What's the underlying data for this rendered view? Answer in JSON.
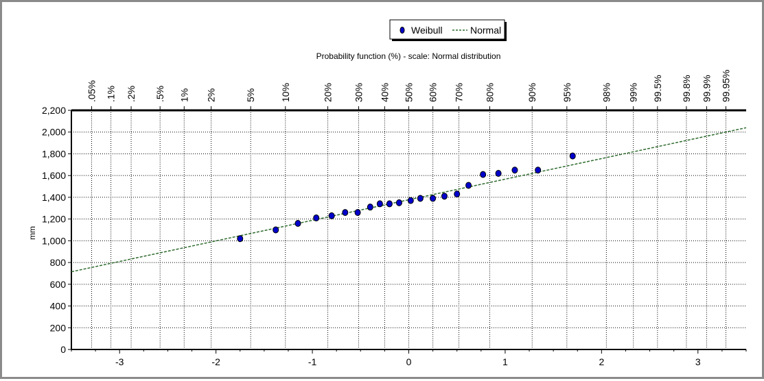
{
  "chart_data": {
    "type": "scatter",
    "title": "Probability function (%) - scale: Normal distribution",
    "ylabel": "mm",
    "xlim": [
      -3.5,
      3.5
    ],
    "ylim": [
      0,
      2200
    ],
    "x_ticks": [
      -3,
      -2,
      -1,
      0,
      1,
      2,
      3
    ],
    "y_ticks": [
      0,
      200,
      400,
      600,
      800,
      1000,
      1200,
      1400,
      1600,
      1800,
      2000,
      2200
    ],
    "y_tick_labels": [
      "0",
      "200",
      "400",
      "600",
      "800",
      "1,000",
      "1,200",
      "1,400",
      "1,600",
      "1,800",
      "2,000",
      "2,200"
    ],
    "top_axis": {
      "labels": [
        ".05%",
        ".1%",
        ".2%",
        ".5%",
        "1%",
        "2%",
        "5%",
        "10%",
        "20%",
        "30%",
        "40%",
        "50%",
        "60%",
        "70%",
        "80%",
        "90%",
        "95%",
        "98%",
        "99%",
        "99.5%",
        "99.8%",
        "99.9%",
        "99.95%"
      ],
      "z": [
        -3.29,
        -3.09,
        -2.88,
        -2.58,
        -2.33,
        -2.05,
        -1.64,
        -1.28,
        -0.84,
        -0.52,
        -0.25,
        0,
        0.25,
        0.52,
        0.84,
        1.28,
        1.64,
        2.05,
        2.33,
        2.58,
        2.88,
        3.09,
        3.29
      ]
    },
    "grid": true,
    "legend_position": "top-center",
    "series": [
      {
        "name": "Weibull",
        "kind": "points",
        "color": "#0000cc",
        "x": [
          -1.75,
          -1.38,
          -1.15,
          -0.96,
          -0.8,
          -0.66,
          -0.53,
          -0.4,
          -0.3,
          -0.2,
          -0.1,
          0.02,
          0.12,
          0.25,
          0.37,
          0.5,
          0.62,
          0.77,
          0.93,
          1.1,
          1.34,
          1.7
        ],
        "y": [
          1020,
          1100,
          1160,
          1210,
          1230,
          1260,
          1260,
          1310,
          1340,
          1340,
          1350,
          1370,
          1390,
          1390,
          1410,
          1430,
          1510,
          1610,
          1620,
          1650,
          1650,
          1780
        ]
      },
      {
        "name": "Normal",
        "kind": "line",
        "style": "dashed",
        "color": "#2e6b2e",
        "x": [
          -3.5,
          3.5
        ],
        "y": [
          715,
          2040
        ]
      }
    ]
  }
}
